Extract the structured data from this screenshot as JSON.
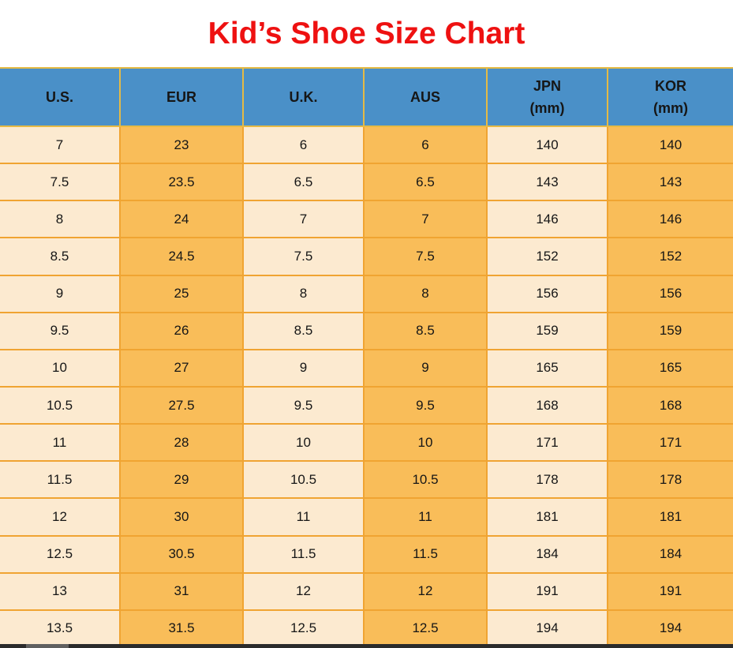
{
  "page": {
    "title": "Kid’s Shoe Size Chart"
  },
  "colors": {
    "title_red": "#ee1111",
    "header_blue": "#4a90c8",
    "row_cream": "#fcead0",
    "row_orange": "#f9bd59",
    "border_orange": "#f0a432",
    "header_border_yellow": "#e5ba45",
    "text_black": "#161616",
    "bottom_bar": "#2b2b2b",
    "bottom_bar_thumb": "#606060"
  },
  "table": {
    "columns": [
      {
        "key": "us",
        "label": "U.S.",
        "sub": ""
      },
      {
        "key": "eur",
        "label": "EUR",
        "sub": ""
      },
      {
        "key": "uk",
        "label": "U.K.",
        "sub": ""
      },
      {
        "key": "aus",
        "label": "AUS",
        "sub": ""
      },
      {
        "key": "jpn",
        "label": "JPN",
        "sub": "(mm)"
      },
      {
        "key": "kor",
        "label": "KOR",
        "sub": "(mm)"
      }
    ],
    "rows": [
      {
        "us": "7",
        "eur": "23",
        "uk": "6",
        "aus": "6",
        "jpn": "140",
        "kor": "140"
      },
      {
        "us": "7.5",
        "eur": "23.5",
        "uk": "6.5",
        "aus": "6.5",
        "jpn": "143",
        "kor": "143"
      },
      {
        "us": "8",
        "eur": "24",
        "uk": "7",
        "aus": "7",
        "jpn": "146",
        "kor": "146"
      },
      {
        "us": "8.5",
        "eur": "24.5",
        "uk": "7.5",
        "aus": "7.5",
        "jpn": "152",
        "kor": "152"
      },
      {
        "us": "9",
        "eur": "25",
        "uk": "8",
        "aus": "8",
        "jpn": "156",
        "kor": "156"
      },
      {
        "us": "9.5",
        "eur": "26",
        "uk": "8.5",
        "aus": "8.5",
        "jpn": "159",
        "kor": "159"
      },
      {
        "us": "10",
        "eur": "27",
        "uk": "9",
        "aus": "9",
        "jpn": "165",
        "kor": "165"
      },
      {
        "us": "10.5",
        "eur": "27.5",
        "uk": "9.5",
        "aus": "9.5",
        "jpn": "168",
        "kor": "168"
      },
      {
        "us": "11",
        "eur": "28",
        "uk": "10",
        "aus": "10",
        "jpn": "171",
        "kor": "171"
      },
      {
        "us": "11.5",
        "eur": "29",
        "uk": "10.5",
        "aus": "10.5",
        "jpn": "178",
        "kor": "178"
      },
      {
        "us": "12",
        "eur": "30",
        "uk": "11",
        "aus": "11",
        "jpn": "181",
        "kor": "181"
      },
      {
        "us": "12.5",
        "eur": "30.5",
        "uk": "11.5",
        "aus": "11.5",
        "jpn": "184",
        "kor": "184"
      },
      {
        "us": "13",
        "eur": "31",
        "uk": "12",
        "aus": "12",
        "jpn": "191",
        "kor": "191"
      },
      {
        "us": "13.5",
        "eur": "31.5",
        "uk": "12.5",
        "aus": "12.5",
        "jpn": "194",
        "kor": "194"
      }
    ]
  },
  "chart_data": {
    "type": "table",
    "title": "Kid’s Shoe Size Chart",
    "columns": [
      "U.S.",
      "EUR",
      "U.K.",
      "AUS",
      "JPN (mm)",
      "KOR (mm)"
    ],
    "rows": [
      [
        "7",
        "23",
        "6",
        "6",
        "140",
        "140"
      ],
      [
        "7.5",
        "23.5",
        "6.5",
        "6.5",
        "143",
        "143"
      ],
      [
        "8",
        "24",
        "7",
        "7",
        "146",
        "146"
      ],
      [
        "8.5",
        "24.5",
        "7.5",
        "7.5",
        "152",
        "152"
      ],
      [
        "9",
        "25",
        "8",
        "8",
        "156",
        "156"
      ],
      [
        "9.5",
        "26",
        "8.5",
        "8.5",
        "159",
        "159"
      ],
      [
        "10",
        "27",
        "9",
        "9",
        "165",
        "165"
      ],
      [
        "10.5",
        "27.5",
        "9.5",
        "9.5",
        "168",
        "168"
      ],
      [
        "11",
        "28",
        "10",
        "10",
        "171",
        "171"
      ],
      [
        "11.5",
        "29",
        "10.5",
        "10.5",
        "178",
        "178"
      ],
      [
        "12",
        "30",
        "11",
        "11",
        "181",
        "181"
      ],
      [
        "12.5",
        "30.5",
        "11.5",
        "11.5",
        "184",
        "184"
      ],
      [
        "13",
        "31",
        "12",
        "12",
        "191",
        "191"
      ],
      [
        "13.5",
        "31.5",
        "12.5",
        "12.5",
        "194",
        "194"
      ]
    ]
  }
}
